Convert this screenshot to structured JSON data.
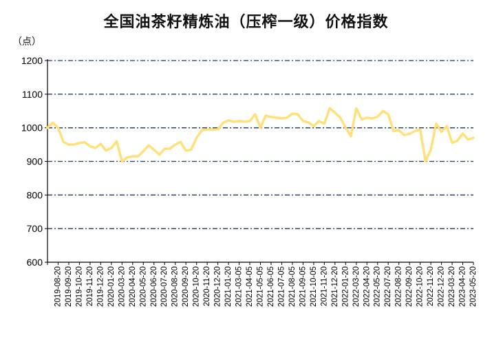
{
  "chart_data": {
    "type": "line",
    "title": "全国油茶籽精炼油（压榨一级）价格指数",
    "ylabel": "（点）",
    "xlabel": "",
    "ylim": [
      600,
      1200
    ],
    "yticks": [
      600,
      700,
      800,
      900,
      1000,
      1100,
      1200
    ],
    "grid": true,
    "line_color": "#FFE07A",
    "grid_color": "#1F3864",
    "x_tick_labels": [
      "2019-08-20",
      "2019-09-20",
      "2019-10-20",
      "2019-11-20",
      "2019-12-20",
      "2020-01-20",
      "2020-03-20",
      "2020-04-20",
      "2020-05-20",
      "2020-06-20",
      "2020-07-20",
      "2020-08-20",
      "2020-09-20",
      "2020-10-20",
      "2020-11-20",
      "2020-12-20",
      "2021-01-20",
      "2021-03-05",
      "2021-04-05",
      "2021-05-05",
      "2021-06-05",
      "2021-07-05",
      "2021-08-05",
      "2021-09-05",
      "2021-10-05",
      "2021-11-20",
      "2021-12-20",
      "2022-01-20",
      "2022-03-20",
      "2022-04-20",
      "2022-05-20",
      "2022-07-20",
      "2022-08-20",
      "2022-09-20",
      "2022-10-20",
      "2022-11-20",
      "2022-12-20",
      "2023-03-20",
      "2023-04-20",
      "2023-05-20"
    ],
    "values": [
      1000,
      1015,
      1000,
      958,
      950,
      950,
      955,
      957,
      945,
      940,
      952,
      932,
      940,
      960,
      900,
      912,
      915,
      915,
      930,
      948,
      935,
      920,
      937,
      938,
      950,
      958,
      932,
      935,
      970,
      993,
      995,
      995,
      995,
      1015,
      1022,
      1018,
      1020,
      1018,
      1020,
      1040,
      1000,
      1036,
      1032,
      1030,
      1028,
      1030,
      1042,
      1040,
      1020,
      1016,
      1005,
      1020,
      1012,
      1058,
      1045,
      1030,
      1000,
      975,
      1058,
      1025,
      1030,
      1028,
      1033,
      1050,
      1040,
      990,
      993,
      978,
      982,
      990,
      995,
      900,
      935,
      1012,
      988,
      1005,
      955,
      962,
      983,
      965,
      970
    ]
  }
}
